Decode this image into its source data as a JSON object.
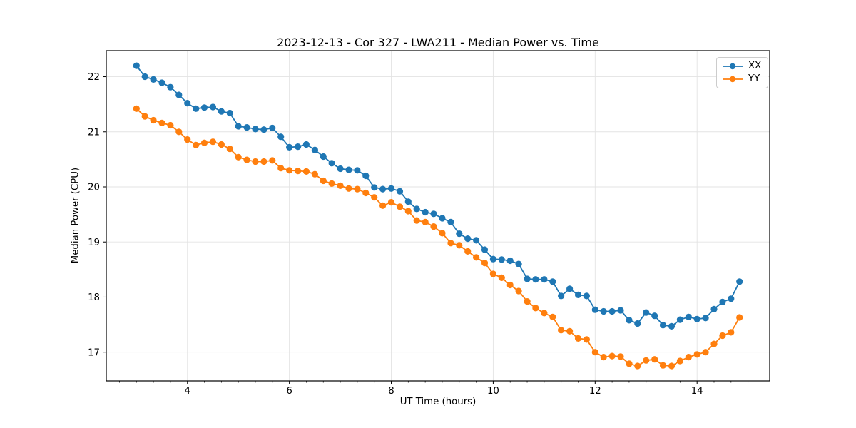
{
  "chart_data": {
    "type": "line",
    "title": "2023-12-13 - Cor 327 - LWA211 - Median Power vs. Time",
    "xlabel": "UT Time (hours)",
    "ylabel": "Median Power (CPU)",
    "xlim": [
      2.408,
      15.425
    ],
    "ylim": [
      16.478,
      22.473
    ],
    "xticks": [
      4,
      6,
      8,
      10,
      12,
      14
    ],
    "yticks": [
      17,
      18,
      19,
      20,
      21,
      22
    ],
    "minor_xtick_step": 0.33333,
    "grid": true,
    "legend_position": "upper right",
    "grid_color": "#e3e3e3",
    "x": [
      3.0,
      3.167,
      3.333,
      3.5,
      3.667,
      3.833,
      4.0,
      4.167,
      4.333,
      4.5,
      4.667,
      4.833,
      5.0,
      5.167,
      5.333,
      5.5,
      5.667,
      5.833,
      6.0,
      6.167,
      6.333,
      6.5,
      6.667,
      6.833,
      7.0,
      7.167,
      7.333,
      7.5,
      7.667,
      7.833,
      8.0,
      8.167,
      8.333,
      8.5,
      8.667,
      8.833,
      9.0,
      9.167,
      9.333,
      9.5,
      9.667,
      9.833,
      10.0,
      10.167,
      10.333,
      10.5,
      10.667,
      10.833,
      11.0,
      11.167,
      11.333,
      11.5,
      11.667,
      11.833,
      12.0,
      12.167,
      12.333,
      12.5,
      12.667,
      12.833,
      13.0,
      13.167,
      13.333,
      13.5,
      13.667,
      13.833,
      14.0,
      14.167,
      14.333,
      14.5,
      14.667,
      14.833
    ],
    "series": [
      {
        "name": "XX",
        "color": "#1f77b4",
        "values": [
          22.2,
          22.0,
          21.95,
          21.89,
          21.81,
          21.67,
          21.52,
          21.42,
          21.44,
          21.45,
          21.37,
          21.34,
          21.1,
          21.08,
          21.05,
          21.04,
          21.07,
          20.91,
          20.72,
          20.73,
          20.77,
          20.67,
          20.55,
          20.43,
          20.33,
          20.31,
          20.3,
          20.2,
          19.99,
          19.96,
          19.97,
          19.92,
          19.73,
          19.6,
          19.54,
          19.51,
          19.43,
          19.36,
          19.15,
          19.06,
          19.03,
          18.86,
          18.69,
          18.68,
          18.66,
          18.6,
          18.33,
          18.32,
          18.32,
          18.28,
          18.02,
          18.15,
          18.04,
          18.02,
          17.77,
          17.74,
          17.74,
          17.76,
          17.58,
          17.52,
          17.72,
          17.66,
          17.49,
          17.47,
          17.59,
          17.64,
          17.6,
          17.62,
          17.78,
          17.91,
          17.97,
          18.28
        ]
      },
      {
        "name": "YY",
        "color": "#ff7f0e",
        "values": [
          21.42,
          21.28,
          21.21,
          21.16,
          21.12,
          21.0,
          20.86,
          20.76,
          20.8,
          20.82,
          20.77,
          20.69,
          20.54,
          20.49,
          20.46,
          20.46,
          20.48,
          20.34,
          20.3,
          20.29,
          20.28,
          20.23,
          20.11,
          20.06,
          20.02,
          19.97,
          19.96,
          19.89,
          19.81,
          19.66,
          19.72,
          19.64,
          19.56,
          19.39,
          19.36,
          19.28,
          19.16,
          18.98,
          18.94,
          18.83,
          18.72,
          18.62,
          18.42,
          18.35,
          18.22,
          18.11,
          17.92,
          17.8,
          17.71,
          17.64,
          17.4,
          17.38,
          17.25,
          17.23,
          17.0,
          16.91,
          16.93,
          16.92,
          16.79,
          16.75,
          16.85,
          16.87,
          16.76,
          16.75,
          16.84,
          16.91,
          16.96,
          17.0,
          17.15,
          17.3,
          17.36,
          17.63
        ]
      }
    ]
  }
}
